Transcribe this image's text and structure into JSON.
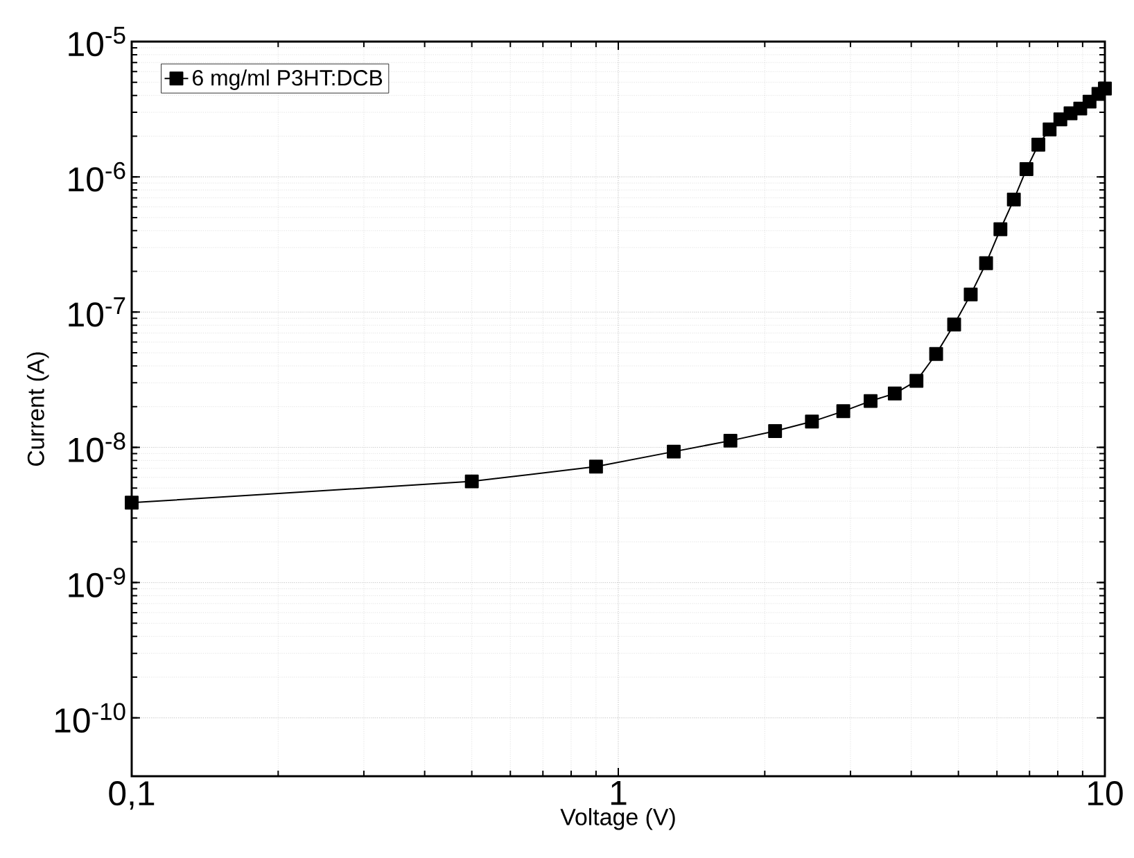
{
  "chart_data": {
    "type": "line",
    "xlabel": "Voltage (V)",
    "ylabel": "Current (A)",
    "log": "xy",
    "grid": true,
    "legend": "top left",
    "marker": "square",
    "line_style": "solid",
    "xlim": [
      0.1,
      10
    ],
    "xticks": [
      {
        "value": 0.1,
        "label": "0,1"
      },
      1,
      10
    ],
    "ylim": [
      3.7e-11,
      1e-05
    ],
    "yticks": [
      {
        "value": 1e-10,
        "label": "10$^{-10}$"
      },
      {
        "value": 1e-09,
        "label": "10$^{-9}$"
      },
      {
        "value": 1e-08,
        "label": "10$^{-8}$"
      },
      {
        "value": 1e-07,
        "label": "10$^{-7}$"
      },
      {
        "value": 1e-06,
        "label": "10$^{-6}$"
      },
      {
        "value": 1e-05,
        "label": "10$^{-5}$"
      }
    ],
    "series": [
      {
        "name": "6 mg/ml P3HT:DCB",
        "color": "#000000",
        "x": [
          0.1,
          0.5,
          0.9,
          1.3,
          1.7,
          2.1,
          2.5,
          2.9,
          3.3,
          3.7,
          4.1,
          4.5,
          4.9,
          5.3,
          5.7,
          6.1,
          6.5,
          6.9,
          7.3,
          7.7,
          8.1,
          8.5,
          8.9,
          9.3,
          9.7,
          10
        ],
        "values": [
          3.9e-09,
          5.6e-09,
          7.2e-09,
          9.3e-09,
          1.12e-08,
          1.32e-08,
          1.55e-08,
          1.85e-08,
          2.2e-08,
          2.5e-08,
          3.1e-08,
          4.9e-08,
          8.1e-08,
          1.35e-07,
          2.3e-07,
          4.1e-07,
          6.8e-07,
          1.14e-06,
          1.73e-06,
          2.24e-06,
          2.66e-06,
          2.95e-06,
          3.2e-06,
          3.6e-06,
          4.1e-06,
          4.5e-06
        ]
      }
    ]
  }
}
